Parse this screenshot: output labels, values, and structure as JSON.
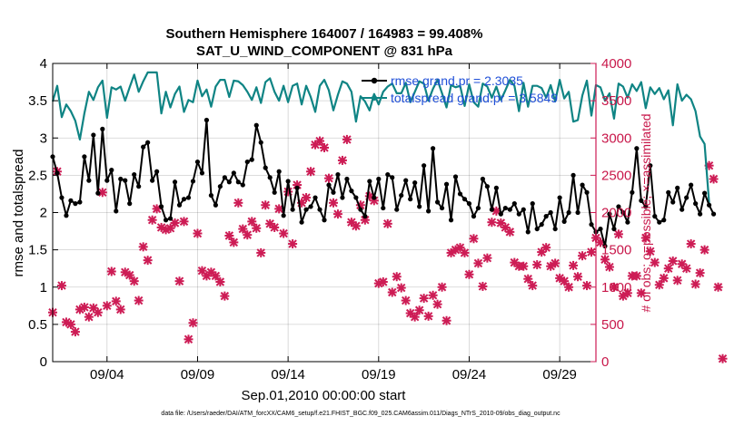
{
  "chart_data": {
    "type": "line",
    "title": "Southern Hemisphere 164007 / 164983 = 99.408%",
    "subtitle": "SAT_U_WIND_COMPONENT @ 831 hPa",
    "xlabel": "Sep.01,2010 00:00:00 start",
    "ylabel": "rmse and totalspread",
    "ylabel_right": "# of obs: o=possible; ×=assimilated",
    "xlim": [
      1.0,
      31.0
    ],
    "ylim": [
      0,
      4
    ],
    "ylim_right": [
      0,
      4000
    ],
    "x_ticks": [
      4,
      9,
      14,
      19,
      24,
      29
    ],
    "x_tick_labels": [
      "09/04",
      "09/09",
      "09/14",
      "09/19",
      "09/24",
      "09/29"
    ],
    "y_tick_labels": [
      "0",
      "0.5",
      "1",
      "1.5",
      "2",
      "2.5",
      "3",
      "3.5",
      "4"
    ],
    "y_right_tick_labels": [
      "0",
      "500",
      "1000",
      "1500",
      "2000",
      "2500",
      "3000",
      "3500",
      "4000"
    ],
    "legend_position": "top-right",
    "colors": {
      "rmse": "#000000",
      "spread": "#0f8484",
      "obs": "#cd1c55",
      "legend_text": "#1f4fd8"
    },
    "series": [
      {
        "name": "rmse grand.pr = 2.3035",
        "x_start": 1.0,
        "x_step": 0.25,
        "values": [
          2.75,
          2.53,
          2.2,
          1.96,
          2.16,
          2.12,
          2.14,
          2.75,
          2.43,
          3.04,
          2.26,
          3.12,
          2.43,
          2.57,
          2.02,
          2.45,
          2.43,
          2.12,
          2.51,
          2.35,
          2.88,
          2.94,
          2.43,
          2.55,
          2.08,
          1.9,
          1.92,
          2.41,
          2.1,
          2.18,
          2.2,
          2.42,
          2.68,
          2.53,
          3.24,
          2.23,
          2.1,
          2.35,
          2.47,
          2.41,
          2.53,
          2.41,
          2.37,
          2.68,
          2.71,
          3.17,
          2.94,
          2.6,
          2.47,
          2.27,
          2.55,
          1.96,
          2.42,
          2.04,
          2.33,
          1.87,
          2.04,
          2.08,
          2.2,
          2.04,
          1.9,
          2.37,
          2.27,
          2.51,
          2.2,
          2.45,
          2.29,
          2.2,
          2.04,
          1.95,
          2.42,
          2.2,
          2.45,
          2.06,
          2.51,
          2.47,
          2.04,
          2.23,
          2.43,
          2.18,
          2.4,
          2.08,
          2.63,
          2.02,
          2.86,
          2.14,
          2.06,
          2.38,
          1.9,
          2.48,
          2.25,
          2.18,
          2.12,
          1.95,
          2.06,
          2.45,
          2.35,
          2.04,
          2.33,
          1.98,
          2.06,
          2.04,
          2.12,
          1.98,
          2.04,
          1.74,
          2.12,
          1.78,
          1.84,
          1.95,
          2.0,
          1.78,
          2.2,
          1.88,
          2.0,
          2.5,
          2.0,
          2.37,
          2.27,
          1.84,
          1.74,
          1.78,
          1.55,
          1.98,
          1.78,
          2.08,
          2.0,
          1.87,
          2.27,
          2.86,
          2.16,
          2.08,
          2.63,
          1.95,
          1.87,
          1.9,
          2.27,
          2.14,
          2.33,
          2.04,
          2.2,
          2.37,
          2.12,
          1.98,
          2.26,
          2.1,
          1.98
        ],
        "color": "#000000"
      },
      {
        "name": "totalspread grand.pr = 3.5849",
        "x_start": 1.0,
        "x_step": 0.25,
        "values": [
          3.49,
          3.7,
          3.28,
          3.45,
          3.36,
          3.23,
          2.98,
          3.33,
          3.62,
          3.51,
          3.68,
          3.77,
          3.27,
          3.68,
          3.65,
          3.69,
          3.5,
          3.68,
          3.85,
          3.62,
          3.76,
          3.88,
          3.88,
          3.88,
          3.33,
          3.62,
          3.41,
          3.59,
          3.69,
          3.35,
          3.51,
          3.48,
          3.77,
          3.56,
          3.65,
          3.42,
          3.69,
          3.78,
          3.78,
          3.55,
          3.77,
          3.76,
          3.71,
          3.62,
          3.51,
          3.68,
          3.47,
          3.75,
          3.8,
          3.62,
          3.5,
          3.7,
          3.48,
          3.7,
          3.73,
          3.45,
          3.7,
          3.55,
          3.35,
          3.7,
          3.78,
          3.64,
          3.37,
          3.58,
          3.76,
          3.73,
          3.62,
          3.22,
          3.56,
          3.49,
          3.37,
          3.59,
          3.45,
          3.62,
          3.69,
          3.73,
          3.6,
          3.6,
          3.74,
          3.48,
          3.62,
          3.76,
          3.73,
          3.5,
          3.66,
          3.78,
          3.6,
          3.41,
          3.71,
          3.68,
          3.7,
          3.43,
          3.72,
          3.48,
          3.42,
          3.73,
          3.69,
          3.54,
          3.69,
          3.51,
          3.64,
          3.78,
          3.7,
          3.36,
          3.74,
          3.42,
          3.7,
          3.7,
          3.67,
          3.54,
          3.71,
          3.49,
          3.78,
          3.53,
          3.62,
          3.22,
          3.24,
          3.57,
          3.77,
          3.3,
          3.71,
          3.68,
          3.5,
          3.6,
          3.26,
          3.73,
          3.69,
          3.54,
          3.72,
          3.63,
          3.75,
          3.4,
          3.68,
          3.59,
          3.67,
          3.52,
          3.64,
          3.17,
          3.72,
          3.5,
          3.58,
          3.52,
          3.36,
          3.02,
          2.92,
          2.13
        ],
        "color": "#0f8484"
      },
      {
        "name": "obs assimilated",
        "axis": "right",
        "x_start": 1.0,
        "x_step": 0.25,
        "values": [
          660,
          2550,
          1020,
          530,
          500,
          400,
          700,
          730,
          600,
          720,
          660,
          2270,
          750,
          1210,
          810,
          700,
          1200,
          1160,
          1080,
          820,
          1540,
          1360,
          1900,
          2050,
          1800,
          1770,
          1790,
          1860,
          1080,
          1880,
          300,
          520,
          1720,
          1220,
          1150,
          1200,
          1150,
          1070,
          880,
          1690,
          1600,
          2130,
          1780,
          1700,
          1880,
          1790,
          1460,
          2100,
          1850,
          1800,
          2050,
          1720,
          2280,
          1580,
          2370,
          2130,
          2200,
          2550,
          2910,
          2960,
          2870,
          2460,
          2130,
          1980,
          2700,
          2980,
          1870,
          1820,
          2100,
          1900,
          2220,
          2160,
          1050,
          1070,
          1850,
          930,
          1140,
          990,
          820,
          650,
          600,
          690,
          850,
          610,
          890,
          770,
          1000,
          550,
          1460,
          1500,
          1530,
          1460,
          1170,
          1650,
          1320,
          1010,
          1390,
          1870,
          2020,
          1860,
          1800,
          1740,
          1330,
          1280,
          1280,
          1110,
          1020,
          1300,
          1470,
          1530,
          1280,
          1320,
          1120,
          1080,
          1000,
          1290,
          1140,
          1420,
          1020,
          1470,
          1660,
          1600,
          1370,
          1270,
          1000,
          1710,
          880,
          920,
          1150,
          1150,
          920,
          1660,
          1480,
          1330,
          1030,
          1120,
          1250,
          1350,
          1090,
          1310,
          1250,
          1580,
          1040,
          1190,
          1500,
          2630,
          2450,
          1000,
          40
        ],
        "color": "#cd1c55"
      }
    ]
  },
  "footer": "data file: /Users/raeder/DAI/ATM_forcXX/CAM6_setup/f.e21.FHIST_BGC.f09_025.CAM6assim.011/Diags_NTrS_2010-09/obs_diag_output.nc"
}
